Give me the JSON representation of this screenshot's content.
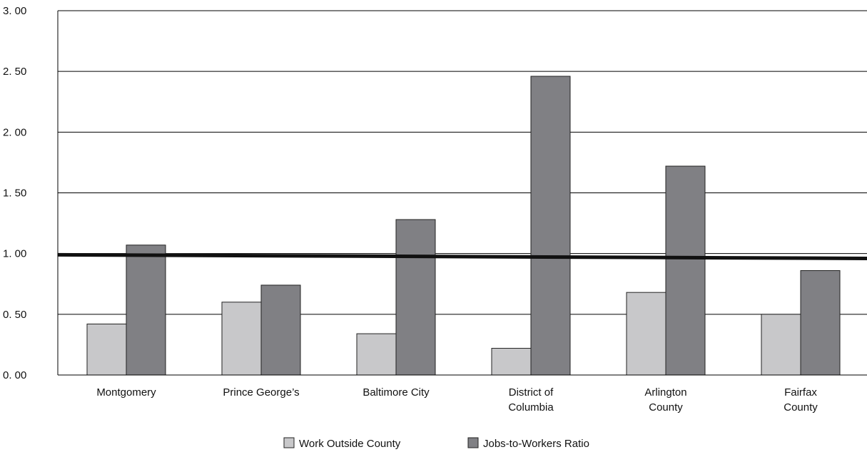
{
  "chart_data": {
    "type": "bar",
    "categories": [
      [
        "Montgomery"
      ],
      [
        "Prince George’s"
      ],
      [
        "Baltimore City"
      ],
      [
        "District of",
        "Columbia"
      ],
      [
        "Arlington",
        "County"
      ],
      [
        "Fairfax",
        "County"
      ]
    ],
    "series": [
      {
        "name": "Work Outside County",
        "values": [
          0.42,
          0.6,
          0.34,
          0.22,
          0.68,
          0.5
        ],
        "color": "#c8c8ca"
      },
      {
        "name": "Jobs-to-Workers Ratio",
        "values": [
          1.07,
          0.74,
          1.28,
          2.46,
          1.72,
          0.86
        ],
        "color": "#808084"
      }
    ],
    "y_ticks": [
      "0. 00",
      "0. 50",
      "1. 00",
      "1. 50",
      "2. 00",
      "2. 50",
      "3. 00"
    ],
    "ylim": [
      0,
      3
    ],
    "grid": true,
    "reference_line": {
      "y_start": 0.99,
      "y_end": 0.96
    },
    "legend_position": "bottom-center"
  }
}
